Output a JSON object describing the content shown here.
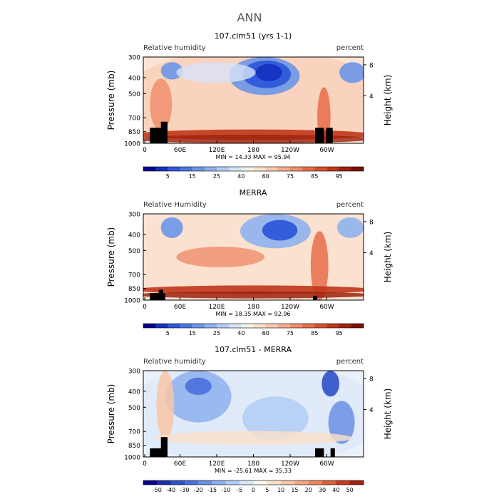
{
  "page_title": "ANN",
  "chart_data": [
    {
      "type": "heatmap",
      "title": "107.clm51 (yrs 1-1)",
      "left_label": "Relative humidity",
      "right_label": "percent",
      "ylabel": "Pressure (mb)",
      "ylabel_right": "Height (km)",
      "x_ticks": [
        "0",
        "60E",
        "120E",
        "180",
        "120W",
        "60W"
      ],
      "y_ticks": [
        "300",
        "400",
        "500",
        "700",
        "850",
        "1000"
      ],
      "height_ticks": [
        "8",
        "4"
      ],
      "stats": "MIN =   14.33   MAX =   95.94",
      "colorbar": {
        "labels": [
          "5",
          "15",
          "25",
          "40",
          "60",
          "75",
          "85",
          "95"
        ],
        "colors": [
          "#08038c",
          "#1530c0",
          "#2e58d8",
          "#4a78e0",
          "#6a96e8",
          "#8fb2ee",
          "#b4ccf2",
          "#d8e4f6",
          "#f5f2ea",
          "#fbe0cc",
          "#f8c8ae",
          "#f5ad8e",
          "#f08e6c",
          "#e86c4a",
          "#d84e2e",
          "#c0361a",
          "#9c220e",
          "#7a1004"
        ]
      }
    },
    {
      "type": "heatmap",
      "title": "MERRA",
      "left_label": "Relative Humidity",
      "right_label": "percent",
      "ylabel": "Pressure (mb)",
      "ylabel_right": "Height (km)",
      "x_ticks": [
        "0",
        "60E",
        "120E",
        "180",
        "120W",
        "60W"
      ],
      "y_ticks": [
        "300",
        "400",
        "500",
        "700",
        "850",
        "1000"
      ],
      "height_ticks": [
        "8",
        "4"
      ],
      "stats": "MIN =   18.35   MAX =   92.96",
      "colorbar": {
        "labels": [
          "5",
          "15",
          "25",
          "40",
          "60",
          "75",
          "85",
          "95"
        ],
        "colors": [
          "#08038c",
          "#1530c0",
          "#2e58d8",
          "#4a78e0",
          "#6a96e8",
          "#8fb2ee",
          "#b4ccf2",
          "#d8e4f6",
          "#f5f2ea",
          "#fbe0cc",
          "#f8c8ae",
          "#f5ad8e",
          "#f08e6c",
          "#e86c4a",
          "#d84e2e",
          "#c0361a",
          "#9c220e",
          "#7a1004"
        ]
      }
    },
    {
      "type": "heatmap",
      "title": "107.clm51 - MERRA",
      "left_label": "Relative humidity",
      "right_label": "percent",
      "ylabel": "Pressure (mb)",
      "ylabel_right": "Height (km)",
      "x_ticks": [
        "0",
        "60E",
        "120E",
        "180",
        "120W",
        "60W"
      ],
      "y_ticks": [
        "300",
        "400",
        "500",
        "700",
        "850",
        "1000"
      ],
      "height_ticks": [
        "8",
        "4"
      ],
      "stats": "MIN =  -25.61   MAX =   35.33",
      "colorbar": {
        "labels": [
          "-50",
          "-40",
          "-30",
          "-20",
          "-15",
          "-10",
          "-5",
          "0",
          "5",
          "10",
          "15",
          "20",
          "30",
          "40",
          "50"
        ],
        "colors": [
          "#08038c",
          "#1a2ea8",
          "#2e50c8",
          "#4a70dc",
          "#6a90e6",
          "#8cb0ee",
          "#b2cdf4",
          "#d8e6f8",
          "#faf6ee",
          "#fbe0c8",
          "#f8c6a8",
          "#f3a684",
          "#ec845e",
          "#de5e3a",
          "#c63a1c",
          "#a0200c"
        ]
      }
    }
  ]
}
